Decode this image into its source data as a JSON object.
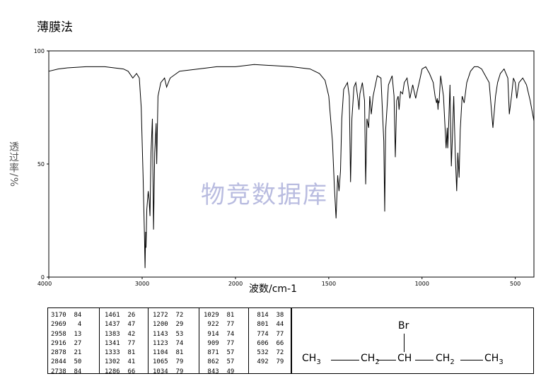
{
  "title": "薄膜法",
  "watermark": "物竞数据库",
  "chart_data": {
    "type": "line",
    "title": "薄膜法",
    "xlabel": "波数/cm-1",
    "ylabel": "透过率/%",
    "xlim": [
      4000,
      400
    ],
    "ylim": [
      0,
      100
    ],
    "x_ticks": [
      "4000",
      "3000",
      "2000",
      "1500",
      "1000",
      "500"
    ],
    "y_ticks": [
      "0",
      "50",
      "100"
    ],
    "grid": false,
    "series": [
      {
        "x": [
          4000,
          3900,
          3800,
          3600,
          3400,
          3200,
          3150,
          3100,
          3060,
          3030,
          3010,
          2990,
          2975,
          2969,
          2962,
          2958,
          2950,
          2935,
          2925,
          2916,
          2905,
          2890,
          2878,
          2865,
          2850,
          2844,
          2830,
          2800,
          2760,
          2738,
          2700,
          2600,
          2400,
          2200,
          2000,
          1900,
          1800,
          1700,
          1600,
          1550,
          1520,
          1500,
          1480,
          1470,
          1461,
          1452,
          1445,
          1437,
          1430,
          1420,
          1400,
          1390,
          1383,
          1376,
          1365,
          1355,
          1341,
          1338,
          1333,
          1320,
          1308,
          1302,
          1295,
          1286,
          1280,
          1272,
          1262,
          1240,
          1220,
          1205,
          1200,
          1195,
          1180,
          1160,
          1150,
          1143,
          1136,
          1128,
          1123,
          1115,
          1104,
          1095,
          1080,
          1065,
          1050,
          1034,
          1029,
          1010,
          1000,
          980,
          960,
          940,
          930,
          922,
          918,
          914,
          912,
          909,
          900,
          885,
          871,
          865,
          862,
          858,
          850,
          843,
          838,
          830,
          822,
          814,
          808,
          801,
          795,
          785,
          774,
          760,
          740,
          720,
          700,
          680,
          660,
          640,
          620,
          606,
          595,
          580,
          560,
          540,
          532,
          520,
          510,
          500,
          492,
          480,
          460,
          440,
          420,
          400
        ],
        "y": [
          91,
          92,
          92.5,
          93,
          93,
          92,
          91,
          88,
          90,
          88,
          75,
          45,
          18,
          4,
          20,
          13,
          30,
          38,
          34,
          27,
          55,
          70,
          21,
          55,
          68,
          50,
          80,
          86,
          88,
          84,
          88,
          91,
          92,
          93,
          93,
          94,
          93.5,
          93,
          92,
          90,
          87,
          80,
          60,
          40,
          26,
          45,
          38,
          47,
          70,
          83,
          86,
          80,
          42,
          70,
          84,
          86,
          77,
          74,
          81,
          86,
          78,
          41,
          70,
          66,
          80,
          72,
          80,
          89,
          88,
          60,
          29,
          65,
          85,
          89,
          80,
          53,
          78,
          80,
          74,
          82,
          81,
          86,
          88,
          79,
          85,
          79,
          81,
          88,
          92,
          93,
          90,
          86,
          80,
          77,
          79,
          74,
          78,
          77,
          89,
          80,
          57,
          66,
          57,
          65,
          85,
          49,
          60,
          80,
          55,
          38,
          55,
          44,
          65,
          80,
          77,
          86,
          91,
          93,
          93,
          92,
          89,
          86,
          66,
          80,
          86,
          90,
          92,
          88,
          72,
          80,
          88,
          86,
          79,
          86,
          88,
          85,
          78,
          69
        ]
      }
    ],
    "peak_table": [
      [
        "3170",
        "84"
      ],
      [
        "2969",
        "4"
      ],
      [
        "2958",
        "13"
      ],
      [
        "2916",
        "27"
      ],
      [
        "2878",
        "21"
      ],
      [
        "2844",
        "50"
      ],
      [
        "2738",
        "84"
      ],
      [
        "1461",
        "26"
      ],
      [
        "1437",
        "47"
      ],
      [
        "1383",
        "42"
      ],
      [
        "1341",
        "77"
      ],
      [
        "1333",
        "81"
      ],
      [
        "1302",
        "41"
      ],
      [
        "1286",
        "66"
      ],
      [
        "1272",
        "72"
      ],
      [
        "1200",
        "29"
      ],
      [
        "1143",
        "53"
      ],
      [
        "1123",
        "74"
      ],
      [
        "1104",
        "81"
      ],
      [
        "1065",
        "79"
      ],
      [
        "1034",
        "79"
      ],
      [
        "1029",
        "81"
      ],
      [
        "922",
        "77"
      ],
      [
        "914",
        "74"
      ],
      [
        "909",
        "77"
      ],
      [
        "871",
        "57"
      ],
      [
        "862",
        "57"
      ],
      [
        "843",
        "49"
      ],
      [
        "814",
        "38"
      ],
      [
        "801",
        "44"
      ],
      [
        "774",
        "77"
      ],
      [
        "606",
        "66"
      ],
      [
        "532",
        "72"
      ],
      [
        "492",
        "79"
      ]
    ]
  },
  "structure": {
    "br": "Br",
    "groups": [
      "CH3",
      "CH2",
      "CH",
      "CH2",
      "CH3"
    ]
  }
}
